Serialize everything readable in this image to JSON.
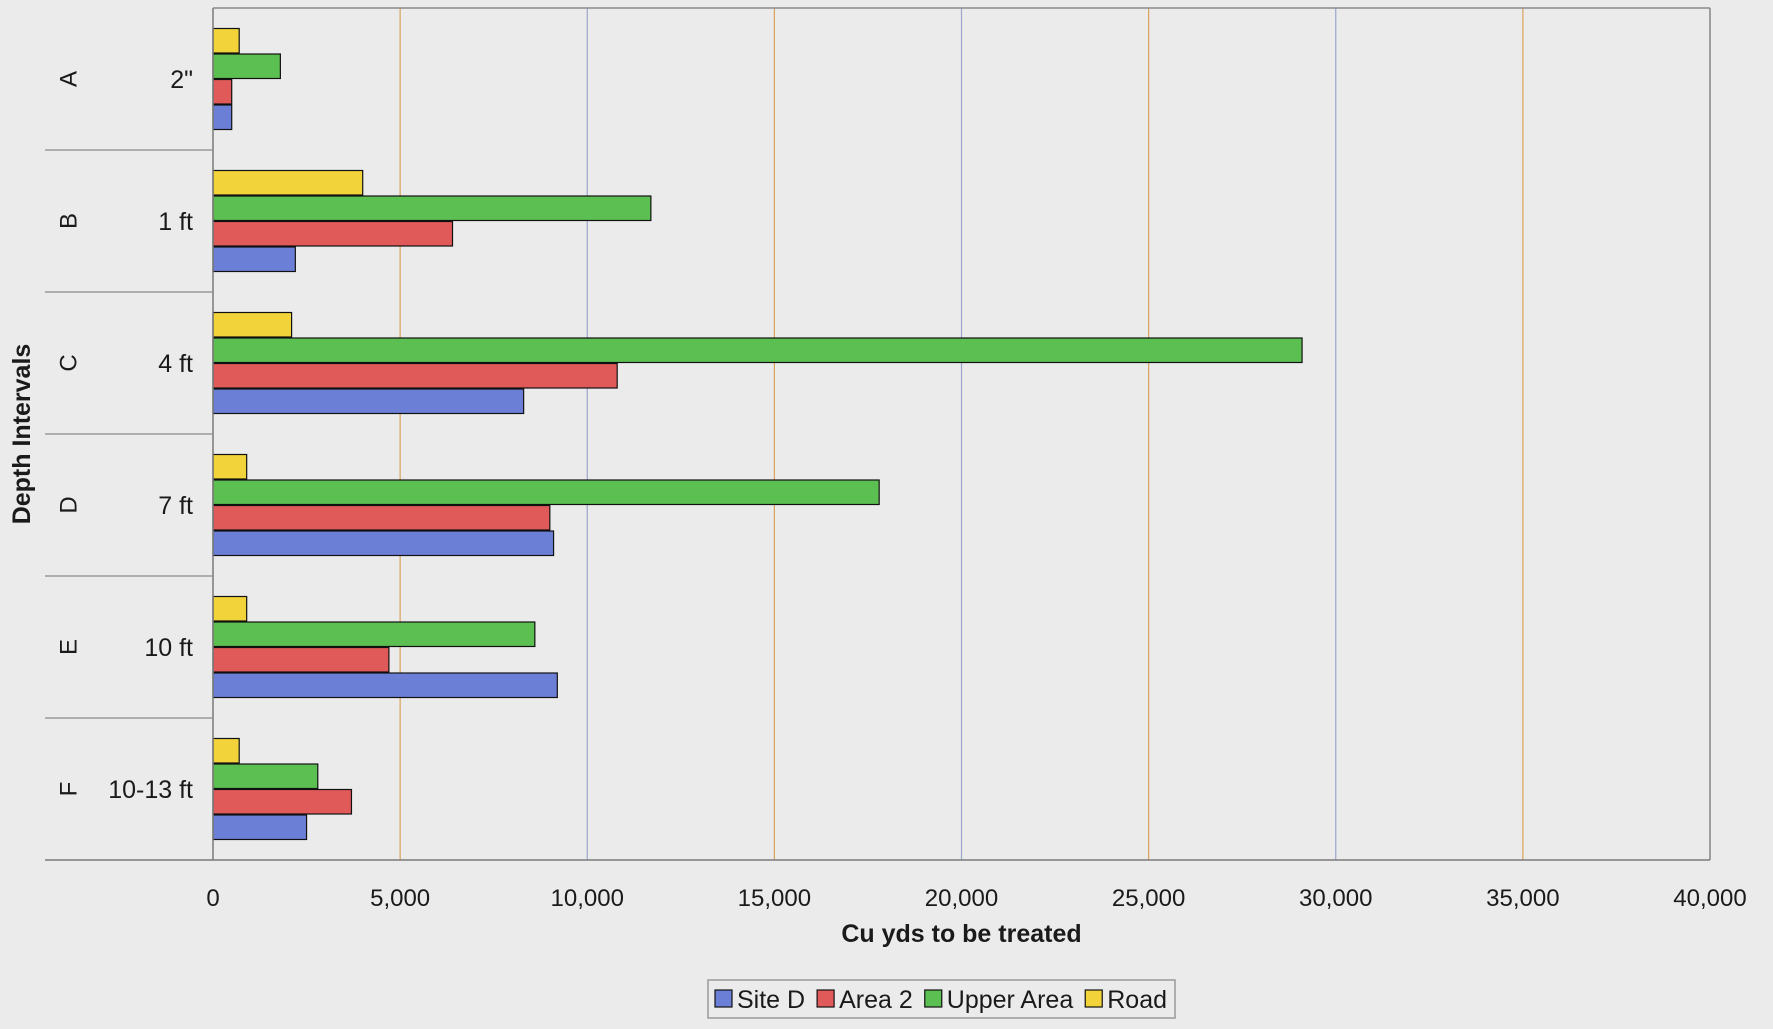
{
  "chart_data": {
    "type": "bar",
    "orientation": "horizontal",
    "title": "",
    "xlabel": "Cu yds to be treated",
    "ylabel": "Depth Intervals",
    "xlim": [
      0,
      40000
    ],
    "x_ticks": [
      "0",
      "5,000",
      "10,000",
      "15,000",
      "20,000",
      "25,000",
      "30,000",
      "35,000",
      "40,000"
    ],
    "x_tick_values": [
      0,
      5000,
      10000,
      15000,
      20000,
      25000,
      30000,
      35000,
      40000
    ],
    "grid": true,
    "legend_position": "bottom",
    "groups": [
      "A",
      "B",
      "C",
      "D",
      "E",
      "F"
    ],
    "categories": [
      "2\"",
      "1 ft",
      "4 ft",
      "7 ft",
      "10 ft",
      "10-13 ft"
    ],
    "series": [
      {
        "name": "Site D",
        "color": "#6b7fd7",
        "values": [
          500,
          2200,
          8300,
          9100,
          9200,
          2500
        ]
      },
      {
        "name": "Area 2",
        "color": "#e05a5a",
        "values": [
          500,
          6400,
          10800,
          9000,
          4700,
          3700
        ]
      },
      {
        "name": "Upper Area",
        "color": "#5cbf52",
        "values": [
          1800,
          11700,
          29100,
          17800,
          8600,
          2800
        ]
      },
      {
        "name": "Road",
        "color": "#f2d33a",
        "values": [
          700,
          4000,
          2100,
          900,
          900,
          700
        ]
      }
    ]
  }
}
